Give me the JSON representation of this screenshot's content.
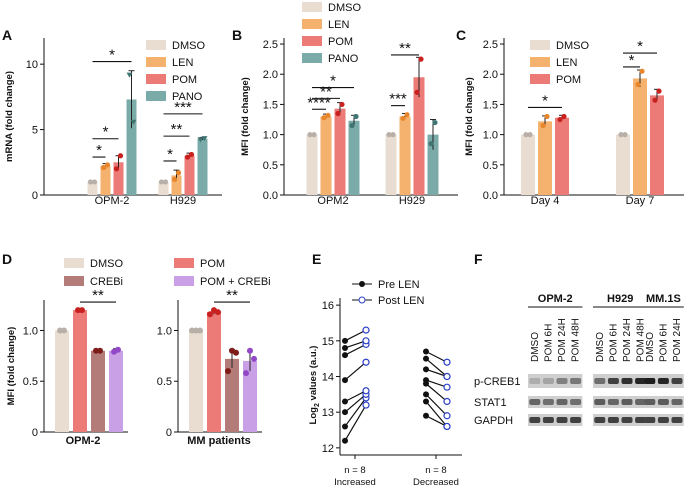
{
  "colors": {
    "DMSO": "#E8DDD0",
    "LEN": "#F4B26E",
    "POM": "#EC7A77",
    "PANO": "#7BABA9",
    "CREBi": "#B47C79",
    "POMCREBi": "#C9A0E6",
    "dot_dmso": "#B8B0A8",
    "dot_len": "#E8862C",
    "dot_pom": "#C8211F",
    "dot_pano": "#3F7573",
    "dot_crebi": "#7E1C19",
    "dot_pomcrebi": "#9348C7",
    "axis": "#111111"
  },
  "chart_data": [
    {
      "panel": "A",
      "type": "bar",
      "ylabel": "mRNA (fold change)",
      "ylim": [
        0,
        12
      ],
      "yticks": [
        "0",
        "5",
        "10"
      ],
      "categories": [
        "OPM-2",
        "H929"
      ],
      "series": [
        {
          "name": "DMSO",
          "values": [
            1.0,
            1.0
          ],
          "err": [
            0.05,
            0.05
          ],
          "pts": [
            [
              1.0,
              1.0
            ],
            [
              1.0,
              1.0
            ]
          ]
        },
        {
          "name": "LEN",
          "values": [
            2.2,
            1.5
          ],
          "err": [
            0.2,
            0.4
          ],
          "pts": [
            [
              2.1,
              2.3
            ],
            [
              1.2,
              1.7
            ]
          ]
        },
        {
          "name": "POM",
          "values": [
            2.5,
            3.0
          ],
          "err": [
            0.5,
            0.2
          ],
          "pts": [
            [
              2.0,
              3.0
            ],
            [
              2.9,
              3.1
            ]
          ]
        },
        {
          "name": "PANO",
          "values": [
            7.3,
            4.3
          ],
          "err": [
            2.2,
            0.1
          ],
          "pts": [
            [
              9.2,
              5.6
            ],
            [
              4.25,
              4.35
            ]
          ]
        }
      ],
      "legend": [
        "DMSO",
        "LEN",
        "POM",
        "PANO"
      ],
      "significance": [
        {
          "label": "*",
          "g": 0,
          "from": 0,
          "to": 3,
          "y": 10.2
        },
        {
          "label": "*",
          "g": 0,
          "from": 0,
          "to": 2,
          "y": 4.3
        },
        {
          "label": "*",
          "g": 0,
          "from": 0,
          "to": 1,
          "y": 2.9
        },
        {
          "label": "***",
          "g": 1,
          "from": 0,
          "to": 3,
          "y": 6.2
        },
        {
          "label": "**",
          "g": 1,
          "from": 0,
          "to": 2,
          "y": 4.5
        },
        {
          "label": "*",
          "g": 1,
          "from": 0,
          "to": 1,
          "y": 2.6
        }
      ]
    },
    {
      "panel": "B",
      "type": "bar",
      "ylabel": "MFI (fold change)",
      "ylim": [
        0,
        2.6
      ],
      "yticks": [
        "0.0",
        "0.5",
        "1.0",
        "1.5",
        "2.0",
        "2.5"
      ],
      "categories": [
        "OPM2",
        "H929"
      ],
      "series": [
        {
          "name": "DMSO",
          "values": [
            1.0,
            1.0
          ],
          "err": [
            0.01,
            0.01
          ],
          "pts": [
            [
              1.0,
              1.0
            ],
            [
              1.0,
              1.0
            ]
          ]
        },
        {
          "name": "LEN",
          "values": [
            1.3,
            1.3
          ],
          "err": [
            0.04,
            0.05
          ],
          "pts": [
            [
              1.28,
              1.32
            ],
            [
              1.27,
              1.33
            ]
          ]
        },
        {
          "name": "POM",
          "values": [
            1.43,
            1.95
          ],
          "err": [
            0.1,
            0.33
          ],
          "pts": [
            [
              1.35,
              1.5
            ],
            [
              1.7,
              2.25
            ]
          ]
        },
        {
          "name": "PANO",
          "values": [
            1.23,
            1.0
          ],
          "err": [
            0.09,
            0.25
          ],
          "pts": [
            [
              1.15,
              1.3
            ],
            [
              0.85,
              1.2
            ]
          ]
        }
      ],
      "legend": [
        "DMSO",
        "LEN",
        "POM",
        "PANO"
      ],
      "significance": [
        {
          "label": "*",
          "g": 0,
          "from": 0,
          "to": 3,
          "y": 1.78
        },
        {
          "label": "**",
          "g": 0,
          "from": 0,
          "to": 2,
          "y": 1.6
        },
        {
          "label": "****",
          "g": 0,
          "from": 0,
          "to": 1,
          "y": 1.42
        },
        {
          "label": "**",
          "g": 1,
          "from": 0,
          "to": 2,
          "y": 2.32
        },
        {
          "label": "***",
          "g": 1,
          "from": 0,
          "to": 1,
          "y": 1.48
        }
      ]
    },
    {
      "panel": "C",
      "type": "bar",
      "ylabel": "MFI (fold change)",
      "ylim": [
        0,
        2.6
      ],
      "yticks": [
        "0.0",
        "0.5",
        "1.0",
        "1.5",
        "2.0",
        "2.5"
      ],
      "categories": [
        "Day 4",
        "Day 7"
      ],
      "series": [
        {
          "name": "DMSO",
          "values": [
            1.0,
            1.0
          ],
          "err": [
            0.01,
            0.01
          ],
          "pts": [
            [
              1.0,
              1.0
            ],
            [
              1.0,
              1.0
            ]
          ]
        },
        {
          "name": "LEN",
          "values": [
            1.22,
            1.93
          ],
          "err": [
            0.09,
            0.14
          ],
          "pts": [
            [
              1.15,
              1.3
            ],
            [
              1.83,
              2.05
            ]
          ]
        },
        {
          "name": "POM",
          "values": [
            1.28,
            1.65
          ],
          "err": [
            0.04,
            0.1
          ],
          "pts": [
            [
              1.25,
              1.3
            ],
            [
              1.57,
              1.72
            ]
          ]
        }
      ],
      "legend": [
        "DMSO",
        "LEN",
        "POM"
      ],
      "significance": [
        {
          "label": "*",
          "g": 0,
          "from": 0,
          "to": 2,
          "y": 1.45
        },
        {
          "label": "*",
          "g": 1,
          "from": 0,
          "to": 1,
          "y": 2.12
        },
        {
          "label": "*",
          "g": 1,
          "from": 0,
          "to": 2,
          "y": 2.35
        }
      ]
    },
    {
      "panel": "D",
      "type": "bar",
      "ylabel": "MFI (fold change)",
      "ylim": [
        0,
        1.3
      ],
      "yticks": [
        "0",
        "0.5",
        "1.0"
      ],
      "groups": [
        {
          "label": "OPM-2",
          "values": [
            1.0,
            1.2,
            0.8,
            0.8
          ],
          "err": [
            0.01,
            0.01,
            0.01,
            0.02
          ],
          "pts": [
            [
              1.0,
              1.0
            ],
            [
              1.2,
              1.2
            ],
            [
              0.8,
              0.8
            ],
            [
              0.79,
              0.81
            ]
          ]
        },
        {
          "label": "MM patients",
          "values": [
            1.0,
            1.18,
            0.72,
            0.7
          ],
          "err": [
            0.01,
            0.02,
            0.09,
            0.1
          ],
          "pts": [
            [
              1.0,
              1.0,
              1.0
            ],
            [
              1.16,
              1.2,
              1.18
            ],
            [
              0.6,
              0.8,
              0.78
            ],
            [
              0.58,
              0.8,
              0.72
            ]
          ]
        }
      ],
      "series_names": [
        "DMSO",
        "POM",
        "CREBi",
        "POM + CREBi"
      ],
      "legend": [
        "DMSO",
        "POM",
        "CREBi",
        "POM + CREBi"
      ],
      "significance": [
        {
          "label": "**",
          "g": 0,
          "from": 1,
          "to": 3,
          "y": 1.28
        },
        {
          "label": "**",
          "g": 1,
          "from": 1,
          "to": 3,
          "y": 1.28
        }
      ]
    },
    {
      "panel": "E",
      "type": "line",
      "ylabel": "Log2 values (a.u.)",
      "ylim": [
        11.8,
        16.2
      ],
      "yticks": [
        "12",
        "13",
        "14",
        "15",
        "16"
      ],
      "categories": [
        "n = 8\nIncreased",
        "n = 8\nDecreased"
      ],
      "legend": [
        "Pre LEN",
        "Post LEN"
      ],
      "increased": [
        [
          12.2,
          13.2
        ],
        [
          12.6,
          13.4
        ],
        [
          13.0,
          13.5
        ],
        [
          13.3,
          13.6
        ],
        [
          13.9,
          14.4
        ],
        [
          14.6,
          14.9
        ],
        [
          14.8,
          15.0
        ],
        [
          15.0,
          15.3
        ]
      ],
      "decreased": [
        [
          14.7,
          14.4
        ],
        [
          14.5,
          14.0
        ],
        [
          14.2,
          14.0
        ],
        [
          13.9,
          13.7
        ],
        [
          13.8,
          13.3
        ],
        [
          13.5,
          12.9
        ],
        [
          13.3,
          12.6
        ],
        [
          12.9,
          12.6
        ]
      ]
    }
  ],
  "panels": {
    "A": "A",
    "B": "B",
    "C": "C",
    "D": "D",
    "E": "E",
    "F": "F"
  },
  "labels": {
    "A_group0": "OPM-2",
    "A_group1": "H929",
    "B_group0": "OPM2",
    "B_group1": "H929",
    "C_group0": "Day 4",
    "C_group1": "Day 7",
    "D_group0": "OPM-2",
    "D_group1": "MM patients",
    "E_cat0a": "n = 8",
    "E_cat0b": "Increased",
    "E_cat1a": "n = 8",
    "E_cat1b": "Decreased",
    "E_ylabel_pre": "Log",
    "E_ylabel_sub": "2",
    "E_ylabel_post": " values (a.u.)"
  },
  "blot": {
    "cell_lines": [
      "OPM-2",
      "H929",
      "MM.1S"
    ],
    "lanes": [
      "DMSO",
      "POM 6H",
      "POM 24H",
      "POM 48H",
      "DMSO",
      "POM 6H",
      "POM 24H",
      "POM 48H",
      "DMSO",
      "POM 6H",
      "POM 24H"
    ],
    "rows": [
      "p-CREB1",
      "STAT1",
      "GAPDH"
    ],
    "intensity": {
      "p-CREB1": [
        0.15,
        0.2,
        0.4,
        0.45,
        0.5,
        0.75,
        0.85,
        0.9,
        0.95,
        0.9,
        0.75
      ],
      "STAT1": [
        0.55,
        0.5,
        0.55,
        0.5,
        0.6,
        0.55,
        0.6,
        0.55,
        0.6,
        0.6,
        0.55
      ],
      "GAPDH": [
        0.75,
        0.75,
        0.75,
        0.75,
        0.75,
        0.75,
        0.75,
        0.75,
        0.75,
        0.75,
        0.75
      ]
    }
  }
}
